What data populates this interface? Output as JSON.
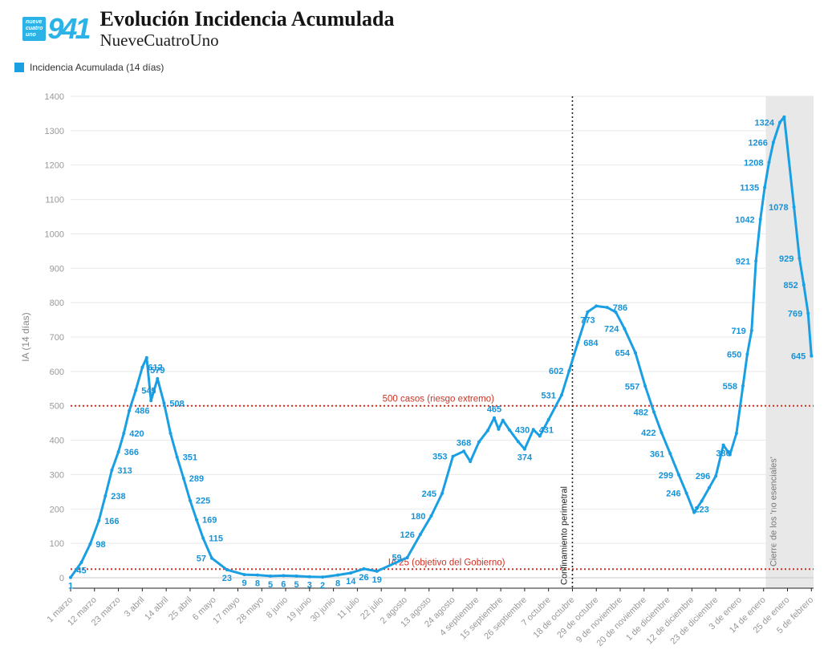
{
  "header": {
    "title": "Evolución Incidencia Acumulada",
    "subtitle": "NueveCuatroUno",
    "logo": {
      "brand": "941",
      "words": [
        "nueve",
        "cuatro",
        "uno"
      ]
    }
  },
  "legend": {
    "label": "Incidencia Acumulada (14 días)"
  },
  "colors": {
    "line": "#1a9fe3",
    "point_label": "#1593d9",
    "threshold": "#cd3122",
    "axis": "#222222",
    "tick_text": "#999999",
    "grid": "#e9e9e9",
    "zero_grid": "#c8c8c8",
    "band": "#e8e8e8",
    "band_text": "#777777",
    "vline": "#222222",
    "ylabel_text": "#888888"
  },
  "chart_data": {
    "type": "line",
    "title": "Evolución Incidencia Acumulada",
    "xlabel": "",
    "ylabel": "IA (14 días)",
    "ylim": [
      0,
      1400
    ],
    "y_tick_step": 100,
    "grid": true,
    "legend_position": "top-left",
    "x_ticks": [
      {
        "day": 0,
        "label": "1 marzo"
      },
      {
        "day": 11,
        "label": "12 marzo"
      },
      {
        "day": 22,
        "label": "23 marzo"
      },
      {
        "day": 33,
        "label": "3 abril"
      },
      {
        "day": 44,
        "label": "14 abril"
      },
      {
        "day": 55,
        "label": "25 abril"
      },
      {
        "day": 66,
        "label": "6 mayo"
      },
      {
        "day": 77,
        "label": "17 mayo"
      },
      {
        "day": 88,
        "label": "28 mayo"
      },
      {
        "day": 99,
        "label": "8 junio"
      },
      {
        "day": 110,
        "label": "19 junio"
      },
      {
        "day": 121,
        "label": "30 junio"
      },
      {
        "day": 132,
        "label": "11 julio"
      },
      {
        "day": 143,
        "label": "22 julio"
      },
      {
        "day": 154,
        "label": "2 agosto"
      },
      {
        "day": 165,
        "label": "13 agosto"
      },
      {
        "day": 176,
        "label": "24 agosto"
      },
      {
        "day": 187,
        "label": "4 septiembre"
      },
      {
        "day": 198,
        "label": "15 septiembre"
      },
      {
        "day": 209,
        "label": "26 septiembre"
      },
      {
        "day": 220,
        "label": "7 octubre"
      },
      {
        "day": 231,
        "label": "18 de octubre"
      },
      {
        "day": 242,
        "label": "29 de octubre"
      },
      {
        "day": 253,
        "label": "9 de noviembre"
      },
      {
        "day": 264,
        "label": "20 de noviembre"
      },
      {
        "day": 275,
        "label": "1 de diciembre"
      },
      {
        "day": 286,
        "label": "12 de diciembre"
      },
      {
        "day": 297,
        "label": "23 de diciembre"
      },
      {
        "day": 308,
        "label": "3 de enero"
      },
      {
        "day": 319,
        "label": "14 de enero"
      },
      {
        "day": 330,
        "label": "25 de enero"
      },
      {
        "day": 341,
        "label": "5 de febrero"
      }
    ],
    "series": [
      {
        "name": "Incidencia Acumulada (14 días)",
        "points": [
          {
            "d": 0,
            "v": 1,
            "s": "b"
          },
          {
            "d": 5,
            "v": 45,
            "s": "b"
          },
          {
            "d": 9,
            "v": 98,
            "s": "r"
          },
          {
            "d": 13,
            "v": 166,
            "s": "r"
          },
          {
            "d": 16,
            "v": 238,
            "s": "r"
          },
          {
            "d": 19,
            "v": 313,
            "s": "r"
          },
          {
            "d": 22,
            "v": 366,
            "s": "r"
          },
          {
            "d": 24.5,
            "v": 420,
            "s": "r"
          },
          {
            "d": 27,
            "v": 486,
            "s": "r"
          },
          {
            "d": 30,
            "v": 545,
            "s": "r"
          },
          {
            "d": 33,
            "v": 612,
            "s": "r"
          },
          {
            "d": 35,
            "v": 640
          },
          {
            "d": 37,
            "v": 515
          },
          {
            "d": 40,
            "v": 579,
            "s": "a"
          },
          {
            "d": 43,
            "v": 508,
            "s": "r"
          },
          {
            "d": 46,
            "v": 420
          },
          {
            "d": 49,
            "v": 351,
            "s": "r"
          },
          {
            "d": 52,
            "v": 289,
            "s": "r"
          },
          {
            "d": 55,
            "v": 225,
            "s": "r"
          },
          {
            "d": 58,
            "v": 169,
            "s": "r"
          },
          {
            "d": 61,
            "v": 115,
            "s": "r"
          },
          {
            "d": 65,
            "v": 57,
            "s": "l"
          },
          {
            "d": 72,
            "v": 23,
            "s": "b"
          },
          {
            "d": 80,
            "v": 9,
            "s": "b"
          },
          {
            "d": 86,
            "v": 8,
            "s": "b"
          },
          {
            "d": 92,
            "v": 5,
            "s": "b"
          },
          {
            "d": 98,
            "v": 6,
            "s": "b"
          },
          {
            "d": 104,
            "v": 5,
            "s": "b"
          },
          {
            "d": 110,
            "v": 3,
            "s": "b"
          },
          {
            "d": 116,
            "v": 2,
            "s": "b"
          },
          {
            "d": 123,
            "v": 8,
            "s": "b"
          },
          {
            "d": 129,
            "v": 14,
            "s": "b"
          },
          {
            "d": 135,
            "v": 26,
            "s": "b"
          },
          {
            "d": 141,
            "v": 19,
            "s": "b"
          },
          {
            "d": 155,
            "v": 59,
            "s": "l"
          },
          {
            "d": 161,
            "v": 126,
            "s": "l"
          },
          {
            "d": 166,
            "v": 180,
            "s": "l"
          },
          {
            "d": 171,
            "v": 245,
            "s": "l"
          },
          {
            "d": 176,
            "v": 353,
            "s": "l"
          },
          {
            "d": 181,
            "v": 368,
            "s": "a"
          },
          {
            "d": 184,
            "v": 338
          },
          {
            "d": 188,
            "v": 395
          },
          {
            "d": 192,
            "v": 428
          },
          {
            "d": 195,
            "v": 465,
            "s": "a"
          },
          {
            "d": 197,
            "v": 432
          },
          {
            "d": 199,
            "v": 458
          },
          {
            "d": 202,
            "v": 430,
            "s": "r"
          },
          {
            "d": 206,
            "v": 396
          },
          {
            "d": 209,
            "v": 374,
            "s": "b"
          },
          {
            "d": 213,
            "v": 431,
            "s": "r"
          },
          {
            "d": 216,
            "v": 412
          },
          {
            "d": 220,
            "v": 460
          },
          {
            "d": 226,
            "v": 531,
            "s": "l"
          },
          {
            "d": 229.5,
            "v": 602,
            "s": "l"
          },
          {
            "d": 233.5,
            "v": 684,
            "s": "r"
          },
          {
            "d": 238,
            "v": 773,
            "s": "b"
          },
          {
            "d": 242,
            "v": 790
          },
          {
            "d": 247,
            "v": 786,
            "s": "r"
          },
          {
            "d": 251,
            "v": 772
          },
          {
            "d": 255,
            "v": 724,
            "s": "l"
          },
          {
            "d": 260,
            "v": 654,
            "s": "l"
          },
          {
            "d": 264.5,
            "v": 557,
            "s": "l"
          },
          {
            "d": 268.5,
            "v": 482,
            "s": "l"
          },
          {
            "d": 272,
            "v": 422,
            "s": "l"
          },
          {
            "d": 276,
            "v": 361,
            "s": "l"
          },
          {
            "d": 280,
            "v": 299,
            "s": "l"
          },
          {
            "d": 283.5,
            "v": 246,
            "s": "l"
          },
          {
            "d": 287,
            "v": 190
          },
          {
            "d": 290.5,
            "v": 223,
            "s": "b"
          },
          {
            "d": 294,
            "v": 262
          },
          {
            "d": 297,
            "v": 296,
            "s": "l"
          },
          {
            "d": 300.5,
            "v": 386,
            "s": "b"
          },
          {
            "d": 303.5,
            "v": 358
          },
          {
            "d": 306.5,
            "v": 420
          },
          {
            "d": 309.5,
            "v": 558,
            "s": "l"
          },
          {
            "d": 311.5,
            "v": 650,
            "s": "l"
          },
          {
            "d": 313.5,
            "v": 719,
            "s": "l"
          },
          {
            "d": 315.5,
            "v": 921,
            "s": "l"
          },
          {
            "d": 317.5,
            "v": 1042,
            "s": "l"
          },
          {
            "d": 319.5,
            "v": 1135,
            "s": "l"
          },
          {
            "d": 321.5,
            "v": 1208,
            "s": "l"
          },
          {
            "d": 323.5,
            "v": 1266,
            "s": "l"
          },
          {
            "d": 326.5,
            "v": 1324,
            "s": "l"
          },
          {
            "d": 328.5,
            "v": 1340
          },
          {
            "d": 333,
            "v": 1078,
            "s": "l"
          },
          {
            "d": 335.5,
            "v": 929,
            "s": "l"
          },
          {
            "d": 337.5,
            "v": 852,
            "s": "l"
          },
          {
            "d": 339.5,
            "v": 769,
            "s": "l"
          },
          {
            "d": 341,
            "v": 645,
            "s": "l"
          }
        ]
      }
    ],
    "annotations": {
      "hlines": [
        {
          "value": 500,
          "label": "500 casos (riesgo extremo)",
          "label_day": 195
        },
        {
          "value": 25,
          "label": "IA 25 (objetivo del Gobierno)",
          "label_day": 200
        }
      ],
      "vlines": [
        {
          "day": 231,
          "label": "Confinamiento perimetral"
        }
      ],
      "bands": [
        {
          "from_day": 320,
          "to_day": 342,
          "label": "Cierre de los 'no esenciales'"
        }
      ]
    }
  }
}
